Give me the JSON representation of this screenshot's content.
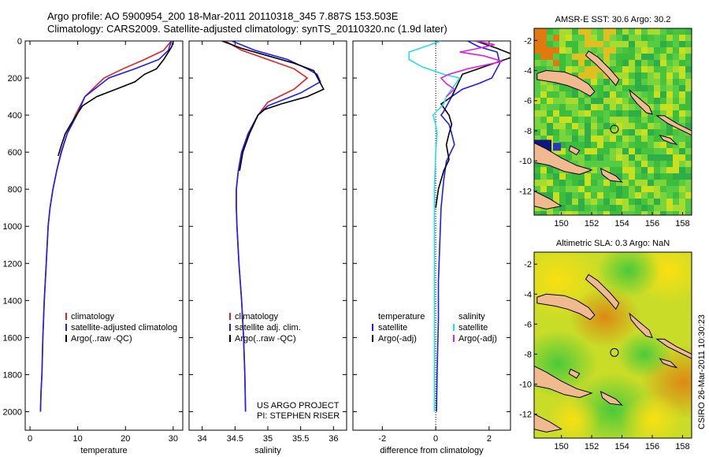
{
  "header": {
    "line1": "Argo profile: AO 5900954_200 18-Mar-2011 20110318_345 7.887S 153.503E",
    "line2": "Climatology: CARS2009. Satellite-adjusted climatology: synTS_20110320.nc (1.9d later)"
  },
  "footer": {
    "project": "US ARGO PROJECT",
    "pi": "PI: STEPHEN RISER",
    "credit": "CSIRO 26-Mar-2011 10:30:23"
  },
  "colors": {
    "clim": "#e02020",
    "sat": "#1a1aff",
    "argo": "#000000",
    "sat_s": "#22e0e8",
    "argo_s": "#e020e0"
  },
  "chart_data": [
    {
      "id": "temperature",
      "type": "line",
      "xlabel": "temperature",
      "ylabel": "",
      "xlim": [
        -1,
        32
      ],
      "ylim": [
        0,
        2100
      ],
      "xticks": [
        0,
        10,
        20,
        30
      ],
      "yticks": [
        0,
        200,
        400,
        600,
        800,
        1000,
        1200,
        1400,
        1600,
        1800,
        2000
      ],
      "legend": [
        "climatology",
        "satellite-adjusted climatolog",
        "Argo(..raw -QC)"
      ],
      "series": [
        {
          "name": "climatology",
          "color": "clim",
          "x": [
            29.6,
            28.0,
            24.0,
            19.5,
            15.5,
            11.5,
            9.5,
            7.8,
            6.6,
            5.6,
            4.8,
            4.2,
            3.8,
            3.4,
            3.0,
            2.7,
            2.5,
            2.3,
            2.2
          ],
          "y": [
            0,
            50,
            100,
            150,
            200,
            300,
            400,
            500,
            600,
            700,
            800,
            900,
            1000,
            1200,
            1400,
            1600,
            1800,
            1900,
            2000
          ]
        },
        {
          "name": "satellite-adjusted climatology",
          "color": "sat",
          "x": [
            29.6,
            29.0,
            27.0,
            22.0,
            16.5,
            11.5,
            9.8,
            7.8,
            6.5,
            5.6,
            4.8,
            4.2,
            3.8,
            3.4,
            3.0,
            2.7,
            2.5,
            2.3,
            2.2
          ],
          "y": [
            0,
            50,
            100,
            150,
            200,
            300,
            400,
            500,
            600,
            700,
            800,
            900,
            1000,
            1200,
            1400,
            1600,
            1800,
            1900,
            2000
          ]
        },
        {
          "name": "Argo",
          "color": "argo",
          "x": [
            30.0,
            29.7,
            29.0,
            28.0,
            26.5,
            24.0,
            22.0,
            18.0,
            14.0,
            11.0,
            10.0,
            8.5,
            7.4,
            6.6,
            5.9
          ],
          "y": [
            0,
            30,
            60,
            100,
            150,
            180,
            220,
            260,
            300,
            350,
            390,
            450,
            500,
            560,
            620
          ]
        }
      ]
    },
    {
      "id": "salinity",
      "type": "line",
      "xlabel": "salinity",
      "ylabel": "",
      "xlim": [
        33.8,
        36.2
      ],
      "ylim": [
        0,
        2100
      ],
      "xticks": [
        34,
        34.5,
        35,
        35.5,
        36
      ],
      "legend": [
        "climatology",
        "satellite adj. clim.",
        "Argo(..raw -QC)"
      ],
      "series": [
        {
          "name": "climatology",
          "color": "clim",
          "x": [
            34.35,
            34.6,
            35.0,
            35.4,
            35.6,
            35.4,
            35.0,
            34.85,
            34.7,
            34.6,
            34.55,
            34.52,
            34.52,
            34.53,
            34.56,
            34.6,
            34.63,
            34.65,
            34.66
          ],
          "y": [
            0,
            50,
            100,
            150,
            200,
            260,
            330,
            400,
            500,
            600,
            700,
            800,
            900,
            1000,
            1200,
            1400,
            1600,
            1800,
            2000
          ]
        },
        {
          "name": "satellite adj. clim.",
          "color": "sat",
          "x": [
            34.45,
            34.8,
            35.3,
            35.6,
            35.75,
            35.8,
            35.5,
            35.0,
            34.85,
            34.7,
            34.6,
            34.55,
            34.52,
            34.52,
            34.53,
            34.56,
            34.6,
            34.63,
            34.65,
            34.66
          ],
          "y": [
            0,
            50,
            100,
            150,
            180,
            220,
            280,
            350,
            400,
            500,
            600,
            700,
            800,
            900,
            1000,
            1200,
            1400,
            1600,
            1800,
            2000
          ]
        },
        {
          "name": "Argo",
          "color": "argo",
          "x": [
            34.3,
            34.6,
            35.0,
            35.4,
            35.7,
            35.85,
            35.6,
            35.2,
            34.95,
            34.85,
            34.72,
            34.62,
            34.57
          ],
          "y": [
            0,
            40,
            80,
            120,
            160,
            260,
            300,
            340,
            370,
            400,
            500,
            600,
            700
          ]
        }
      ]
    },
    {
      "id": "difference",
      "type": "line",
      "xlabel": "difference from climatology",
      "ylabel": "",
      "xlim": [
        -3.1,
        2.8
      ],
      "ylim": [
        0,
        2100
      ],
      "xticks": [
        -2,
        0,
        2
      ],
      "legend_t": [
        "temperature",
        "satellite",
        "Argo(-adj)"
      ],
      "legend_s": [
        "salinity",
        "satellite",
        "Argo(-adj)"
      ],
      "series": [
        {
          "name": "temperature satellite",
          "color": "sat",
          "x": [
            1.2,
            1.6,
            2.3,
            2.4,
            2.1,
            1.6,
            1.0,
            0.6,
            0.3,
            0.2,
            0.5,
            0.6,
            0.7,
            0.4,
            0.3,
            0.2,
            0.15,
            0.1,
            0.1,
            0.05,
            0.03
          ],
          "y": [
            0,
            30,
            60,
            120,
            200,
            230,
            260,
            300,
            380,
            400,
            450,
            500,
            560,
            650,
            750,
            900,
            1100,
            1300,
            1500,
            1800,
            2000
          ]
        },
        {
          "name": "temperature Argo",
          "color": "argo",
          "x": [
            1.5,
            2.3,
            3.0,
            1.6,
            1.0,
            0.8,
            0.6,
            0.2,
            0.4,
            0.5,
            0.6,
            0.5,
            0.4,
            0.5,
            0.3,
            0.1,
            0.0
          ],
          "y": [
            0,
            40,
            80,
            150,
            180,
            240,
            300,
            340,
            380,
            400,
            450,
            500,
            560,
            640,
            700,
            800,
            900
          ]
        },
        {
          "name": "salinity satellite",
          "color": "sat_s",
          "x": [
            0.2,
            -0.4,
            -1.0,
            -1.0,
            -0.5,
            0.3,
            0.9,
            0.7,
            0.4,
            0.3,
            -0.1,
            0.0,
            0.05,
            0.0,
            -0.05,
            -0.05,
            -0.05,
            -0.05,
            -0.05
          ],
          "y": [
            0,
            30,
            60,
            100,
            140,
            180,
            200,
            240,
            300,
            340,
            400,
            450,
            500,
            600,
            800,
            1000,
            1300,
            1600,
            2000
          ]
        },
        {
          "name": "salinity Argo",
          "color": "argo_s",
          "x": [
            1.5,
            2.2,
            1.6,
            0.9,
            1.8,
            2.5,
            1.2,
            0.5,
            0.2,
            0.4,
            0.7,
            0.4
          ],
          "y": [
            0,
            20,
            40,
            60,
            80,
            110,
            150,
            180,
            200,
            230,
            260,
            300
          ]
        }
      ]
    },
    {
      "id": "amsre-sst",
      "type": "heatmap",
      "title": "AMSR-E SST: 30.6 Argo: 30.2",
      "xticks": [
        150,
        152,
        154,
        156,
        158
      ],
      "yticks": [
        -2,
        -4,
        -6,
        -8,
        -10,
        -12
      ],
      "xlim": [
        148.2,
        158.6
      ],
      "ylim": [
        -13.6,
        -1.2
      ],
      "marker": [
        153.5,
        -7.89
      ]
    },
    {
      "id": "altimetric-sla",
      "type": "heatmap",
      "title": "Altimetric SLA: 0.3 Argo: NaN",
      "xticks": [
        150,
        152,
        154,
        156,
        158
      ],
      "yticks": [
        -2,
        -4,
        -6,
        -8,
        -10,
        -12
      ],
      "xlim": [
        148.2,
        158.6
      ],
      "ylim": [
        -13.6,
        -1.2
      ],
      "marker": [
        153.5,
        -7.89
      ]
    }
  ]
}
